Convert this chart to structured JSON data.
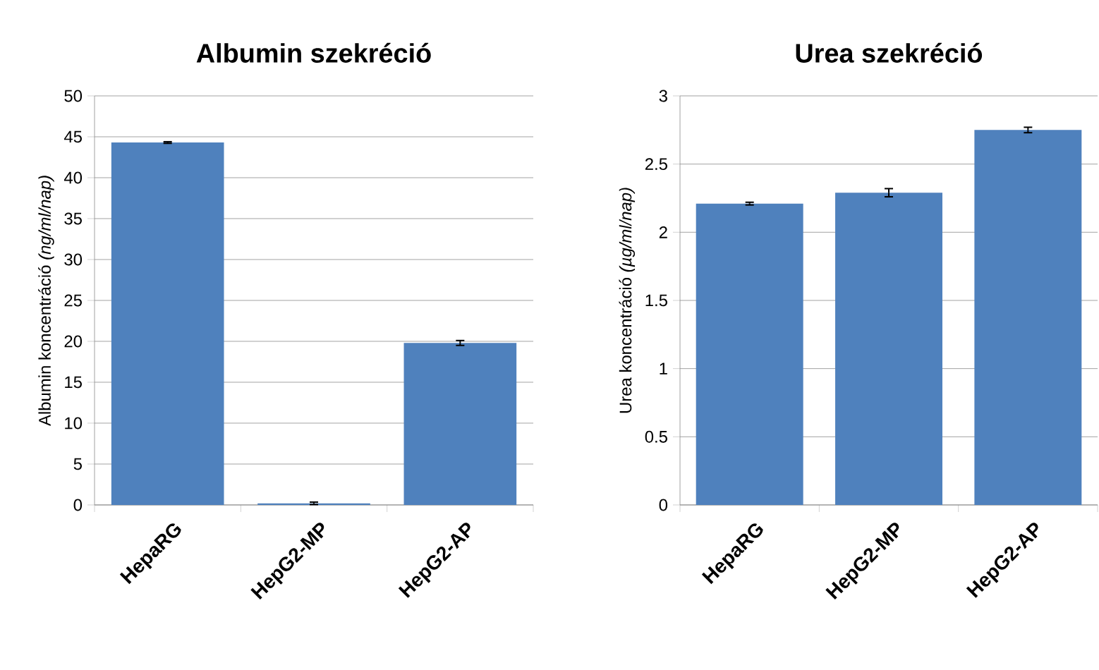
{
  "chart_data": [
    {
      "type": "bar",
      "title": "Albumin szekréció",
      "ylabel": "Albumin koncentráció *(ng/ml/nap)*",
      "categories": [
        "HepaRG",
        "HepG2-MP",
        "HepG2-AP"
      ],
      "values": [
        44.3,
        0.2,
        19.8
      ],
      "errors": [
        0.1,
        0.15,
        0.3
      ],
      "color": "#4f81bd",
      "ylim": [
        0,
        50
      ],
      "yticks": [
        0,
        5,
        10,
        15,
        20,
        25,
        30,
        35,
        40,
        45,
        50
      ],
      "grid": "y"
    },
    {
      "type": "bar",
      "title": "Urea szekréció",
      "ylabel": "Urea koncentráció *(µg/ml/nap)*",
      "categories": [
        "HepaRG",
        "HepG2-MP",
        "HepG2-AP"
      ],
      "values": [
        2.21,
        2.29,
        2.75
      ],
      "errors": [
        0.01,
        0.03,
        0.02
      ],
      "color": "#4f81bd",
      "ylim": [
        0,
        3
      ],
      "yticks": [
        0,
        0.5,
        1,
        1.5,
        2,
        2.5,
        3
      ],
      "grid": "y"
    }
  ]
}
